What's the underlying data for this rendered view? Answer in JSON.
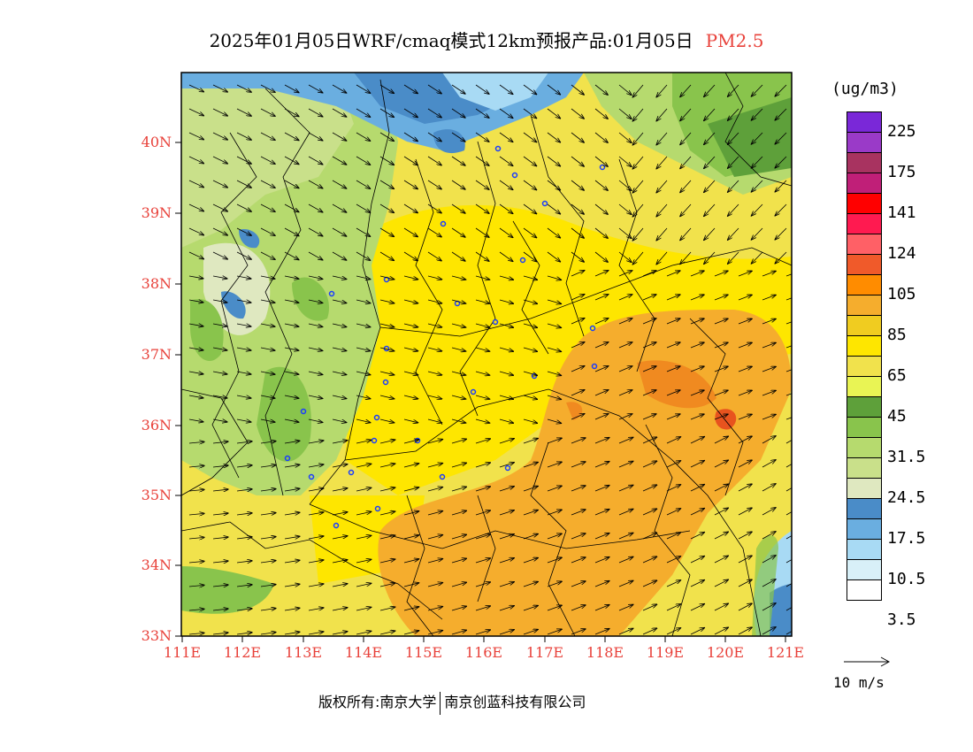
{
  "title": {
    "main": "2025年01月05日WRF/cmaq模式12km预报产品:01月05日",
    "species": "PM2.5"
  },
  "lat_labels": [
    "40N",
    "39N",
    "38N",
    "37N",
    "36N",
    "35N",
    "34N",
    "33N"
  ],
  "lon_labels": [
    "111E",
    "112E",
    "113E",
    "114E",
    "115E",
    "116E",
    "117E",
    "118E",
    "119E",
    "120E",
    "121E"
  ],
  "colorbar": {
    "unit": "(ug/m3)",
    "colors": [
      "#7a28d8",
      "#9a3ac8",
      "#a83360",
      "#c01f78",
      "#ff0000",
      "#ff1a50",
      "#ff6066",
      "#f05a2a",
      "#ff8c00",
      "#f5ad2d",
      "#f0cc20",
      "#fee600",
      "#f1e24c",
      "#e9f454",
      "#5ea03a",
      "#89c44c",
      "#b6da6e",
      "#c9e08a",
      "#dfe8c0",
      "#4a8cc8",
      "#6aaee0",
      "#a8daf4",
      "#d8f0f8",
      "#ffffff"
    ],
    "labels": [
      "225",
      "175",
      "141",
      "124",
      "105",
      "85",
      "65",
      "45",
      "31.5",
      "24.5",
      "17.5",
      "10.5",
      "3.5"
    ]
  },
  "reference_vector": "10 m/s",
  "footer": {
    "copyright": "版权所有:南京大学",
    "company": "南京创蓝科技有限公司"
  }
}
